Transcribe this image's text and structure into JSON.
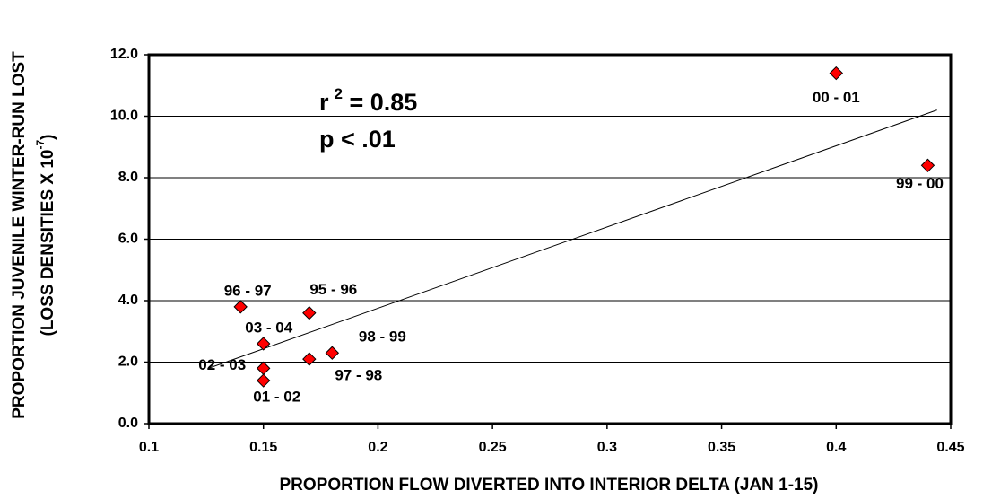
{
  "chart_data": {
    "type": "scatter",
    "x_label": "PROPORTION FLOW DIVERTED INTO INTERIOR DELTA (JAN 1-15)",
    "y_label_line1": "PROPORTION JUVENILE WINTER-RUN LOST",
    "y_label_line2": {
      "base": "(LOSS DENSITIES X 10",
      "sup": "-7",
      "end": ")"
    },
    "r2_annotation": {
      "base": "r",
      "sup": "2",
      "rest": " = 0.85"
    },
    "p_annotation": "p < .01",
    "xlim": [
      0.1,
      0.45
    ],
    "xticks": [
      0.1,
      0.15,
      0.2,
      0.25,
      0.3,
      0.35,
      0.4,
      0.45
    ],
    "ylim": [
      0,
      12
    ],
    "yticks": [
      {
        "value": 0,
        "label": "0.0"
      },
      {
        "value": 2,
        "label": "2.0"
      },
      {
        "value": 4,
        "label": "4.0"
      },
      {
        "value": 6,
        "label": "6.0"
      },
      {
        "value": 8,
        "label": "8.0"
      },
      {
        "value": 10,
        "label": "10.0"
      },
      {
        "value": 12,
        "label": "12.0"
      }
    ],
    "grid": true,
    "color": "#ff0000",
    "points": {
      "labels": [
        "00 - 01",
        "99 - 00",
        "96 - 97",
        "95 - 96",
        "03 - 04",
        "98 - 99",
        "97 - 98",
        "02 - 03",
        "01 - 02"
      ],
      "x": [
        0.4,
        0.44,
        0.14,
        0.17,
        0.15,
        0.18,
        0.17,
        0.15,
        0.15
      ],
      "y": [
        11.4,
        8.4,
        3.8,
        3.6,
        2.6,
        2.3,
        2.1,
        1.8,
        1.4
      ]
    },
    "trendline": {
      "x": [
        0.126,
        0.444
      ],
      "y": [
        1.8,
        10.2
      ]
    }
  }
}
